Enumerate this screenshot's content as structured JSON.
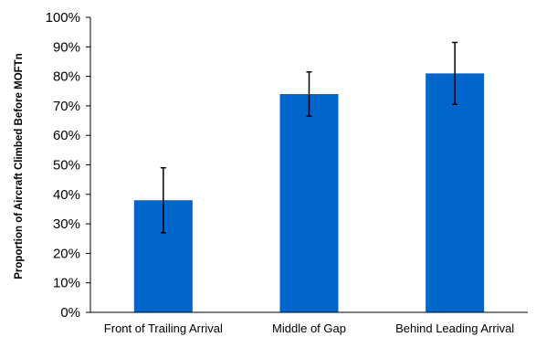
{
  "chart_data": {
    "type": "bar",
    "categories": [
      "Front of Trailing Arrival",
      "Middle of Gap",
      "Behind Leading Arrival"
    ],
    "series": [
      {
        "values": [
          0.38,
          0.74,
          0.81
        ],
        "error_low": [
          0.27,
          0.665,
          0.705
        ],
        "error_high": [
          0.49,
          0.815,
          0.915
        ],
        "color": "#0066CC"
      }
    ],
    "title": "",
    "xlabel": "",
    "ylabel": "Proportion of Aircraft Climbed Before MOFTn",
    "ylim": [
      0,
      1
    ],
    "yticks": [
      "0%",
      "10%",
      "20%",
      "30%",
      "40%",
      "50%",
      "60%",
      "70%",
      "80%",
      "90%",
      "100%"
    ],
    "ytick_values": [
      0,
      0.1,
      0.2,
      0.3,
      0.4,
      0.5,
      0.6,
      0.7,
      0.8,
      0.9,
      1.0
    ],
    "grid": false,
    "legend": "none",
    "axis_color": "#000000",
    "error_bar_color": "#000000"
  }
}
